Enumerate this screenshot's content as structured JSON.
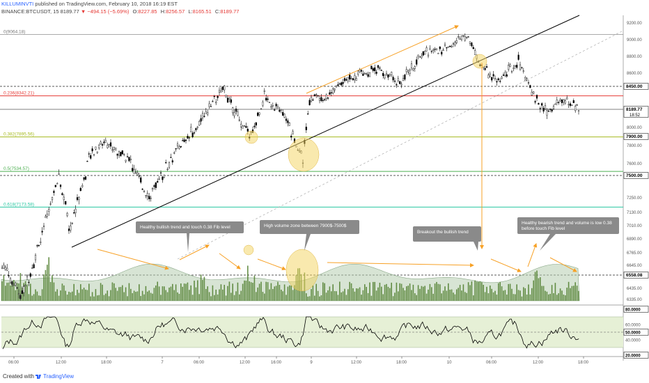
{
  "header": {
    "author": "KILLUMINVTI",
    "published": "published on TradingView.com, February 10, 2018 16:19 EST",
    "symbol": "BINANCE:BTCUSDT, 15",
    "last": "8189.77",
    "change": "▼ −494.15 (−5.69%)",
    "o_label": "O:",
    "o_value": "8227.85",
    "h_label": "H:",
    "h_value": "8256.57",
    "l_label": "L:",
    "l_value": "8165.51",
    "c_label": "C:",
    "c_value": "8189.77"
  },
  "footer": {
    "created": "Created with",
    "brand": "TradingView"
  },
  "colors": {
    "up": "#ffffff",
    "down": "#000000",
    "volume": "#4d7c2a",
    "volume_ma": "#8aa888",
    "fib_red": "#e53935",
    "fib_olive": "#a5b91e",
    "fib_green": "#4caf50",
    "fib_teal": "#26c6a0",
    "arrow": "#f7a126",
    "highlight": "#f4d35e",
    "trendline": "#000000",
    "rsi_band": "#e6f0d6",
    "callout_bg": "#8a8a8a"
  },
  "chart_data": [
    {
      "type": "candlestick",
      "title": "",
      "x_ticks": [
        "06:00",
        "12:00",
        "18:00",
        "7",
        "06:00",
        "12:00",
        "16:00",
        "9",
        "12:00",
        "18:00",
        "10",
        "06:00",
        "12:00",
        "18:00"
      ],
      "y_ticks": [
        "9200.00",
        "9000.00",
        "8800.00",
        "8600.00",
        "8000.00",
        "7800.00",
        "7600.00",
        "7250.00",
        "7130.00",
        "7010.00",
        "6890.00",
        "6765.00",
        "6645.00",
        "6435.00",
        "6335.00"
      ],
      "ylim": [
        6300,
        9300
      ],
      "price_labels": [
        {
          "value": 8450.0,
          "text": "8450.00"
        },
        {
          "value": 8189.77,
          "text": "8189.77",
          "sub": "18:52"
        },
        {
          "value": 7900.0,
          "text": "7900.00"
        },
        {
          "value": 7500.0,
          "text": "7500.00"
        },
        {
          "value": 6558.08,
          "text": "6558.08"
        }
      ],
      "fib_levels": [
        {
          "ratio": "0",
          "value": 9064.18,
          "label": "0(9064.18)"
        },
        {
          "ratio": "0.236",
          "value": 8342.21,
          "label": "0.236(8342.21)"
        },
        {
          "ratio": "0.382",
          "value": 7895.56,
          "label": "0.382(7895.56)"
        },
        {
          "ratio": "0.5",
          "value": 7534.57,
          "label": "0.5(7534.57)"
        },
        {
          "ratio": "0.618",
          "value": 7173.58,
          "label": "0.618(7173.58)"
        }
      ],
      "price_keypoints": [
        {
          "x": 0,
          "y": 6700
        },
        {
          "x": 30,
          "y": 6350
        },
        {
          "x": 60,
          "y": 6900
        },
        {
          "x": 85,
          "y": 7500
        },
        {
          "x": 100,
          "y": 6950
        },
        {
          "x": 130,
          "y": 7700
        },
        {
          "x": 150,
          "y": 7850
        },
        {
          "x": 185,
          "y": 7650
        },
        {
          "x": 215,
          "y": 7250
        },
        {
          "x": 240,
          "y": 7600
        },
        {
          "x": 270,
          "y": 7900
        },
        {
          "x": 300,
          "y": 8200
        },
        {
          "x": 322,
          "y": 8420
        },
        {
          "x": 345,
          "y": 8050
        },
        {
          "x": 360,
          "y": 7900
        },
        {
          "x": 380,
          "y": 8350
        },
        {
          "x": 410,
          "y": 8100
        },
        {
          "x": 435,
          "y": 7650
        },
        {
          "x": 445,
          "y": 8320
        },
        {
          "x": 470,
          "y": 8350
        },
        {
          "x": 500,
          "y": 8550
        },
        {
          "x": 540,
          "y": 8650
        },
        {
          "x": 575,
          "y": 8500
        },
        {
          "x": 610,
          "y": 8850
        },
        {
          "x": 640,
          "y": 8900
        },
        {
          "x": 672,
          "y": 9064
        },
        {
          "x": 690,
          "y": 8700
        },
        {
          "x": 715,
          "y": 8500
        },
        {
          "x": 745,
          "y": 8750
        },
        {
          "x": 765,
          "y": 8350
        },
        {
          "x": 785,
          "y": 8150
        },
        {
          "x": 810,
          "y": 8300
        },
        {
          "x": 832,
          "y": 8190
        }
      ],
      "volume_spikes": [
        {
          "x": 70,
          "v": 0.9
        },
        {
          "x": 290,
          "v": 0.55
        },
        {
          "x": 357,
          "v": 0.7
        },
        {
          "x": 430,
          "v": 0.75
        },
        {
          "x": 690,
          "v": 0.45
        },
        {
          "x": 770,
          "v": 0.55
        }
      ],
      "rsi": {
        "ylim": [
          20,
          80
        ],
        "ticks": [
          "80.0000",
          "60.0000",
          "50.0000",
          "40.0000",
          "20.0000"
        ],
        "band": [
          30,
          70
        ],
        "mid": 50
      },
      "annotations": [
        "Healthy bullish trend and touch 0.38 Fib level",
        "High volume zone between 7900$-7500$",
        "Breakout the bullish trend",
        "Healthy bearish trend and volume is low before touch 0.38 Fib level"
      ]
    }
  ]
}
